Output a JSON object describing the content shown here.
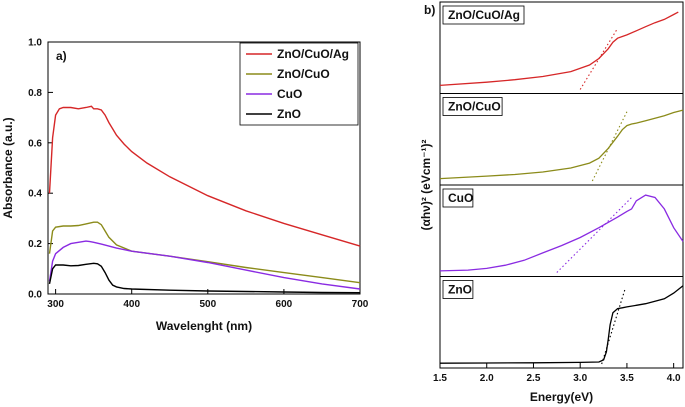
{
  "chart_data": [
    {
      "type": "line",
      "panel_label": "a)",
      "xlabel": "Wavelenght (nm)",
      "ylabel": "Absorbance (a.u.)",
      "xlim": [
        290,
        700
      ],
      "ylim": [
        0,
        1.0
      ],
      "xticks": [
        300,
        400,
        500,
        600,
        700
      ],
      "yticks": [
        0.0,
        0.2,
        0.4,
        0.6,
        0.8,
        1.0
      ],
      "ytick_labels": [
        "0.0",
        "0.2",
        "0.4",
        "0.6",
        "0.8",
        "1.0"
      ],
      "legend_position": "top-right",
      "series": [
        {
          "name": "ZnO/CuO/Ag",
          "color": "#d62728",
          "x": [
            292,
            296,
            300,
            305,
            310,
            320,
            330,
            340,
            347,
            350,
            355,
            360,
            365,
            370,
            375,
            380,
            390,
            400,
            420,
            450,
            500,
            550,
            600,
            650,
            700
          ],
          "y": [
            0.4,
            0.62,
            0.71,
            0.735,
            0.74,
            0.74,
            0.735,
            0.74,
            0.745,
            0.735,
            0.735,
            0.73,
            0.71,
            0.68,
            0.655,
            0.63,
            0.595,
            0.565,
            0.52,
            0.465,
            0.39,
            0.33,
            0.28,
            0.235,
            0.19
          ]
        },
        {
          "name": "ZnO/CuO",
          "color": "#8b8b1a",
          "x": [
            292,
            296,
            300,
            310,
            320,
            330,
            340,
            350,
            355,
            360,
            365,
            370,
            380,
            400,
            450,
            500,
            550,
            600,
            650,
            700
          ],
          "y": [
            0.16,
            0.25,
            0.265,
            0.27,
            0.27,
            0.272,
            0.278,
            0.285,
            0.285,
            0.275,
            0.25,
            0.225,
            0.195,
            0.17,
            0.15,
            0.128,
            0.105,
            0.085,
            0.065,
            0.045
          ]
        },
        {
          "name": "CuO",
          "color": "#8a2be2",
          "x": [
            292,
            296,
            300,
            310,
            320,
            330,
            340,
            345,
            350,
            360,
            370,
            380,
            400,
            450,
            500,
            550,
            600,
            650,
            700
          ],
          "y": [
            0.05,
            0.13,
            0.16,
            0.185,
            0.2,
            0.205,
            0.21,
            0.208,
            0.205,
            0.198,
            0.19,
            0.182,
            0.17,
            0.15,
            0.125,
            0.095,
            0.065,
            0.04,
            0.02
          ]
        },
        {
          "name": "ZnO",
          "color": "#000000",
          "x": [
            292,
            296,
            300,
            310,
            320,
            330,
            340,
            350,
            355,
            360,
            365,
            370,
            375,
            380,
            390,
            400,
            450,
            500,
            550,
            600,
            650,
            700
          ],
          "y": [
            0.04,
            0.1,
            0.115,
            0.115,
            0.112,
            0.113,
            0.118,
            0.122,
            0.12,
            0.11,
            0.085,
            0.055,
            0.035,
            0.028,
            0.022,
            0.02,
            0.015,
            0.012,
            0.01,
            0.008,
            0.006,
            0.005
          ]
        }
      ]
    },
    {
      "type": "line",
      "panel_label": "b)",
      "xlabel": "Energy(eV)",
      "ylabel": "(αhν)² (eVcm⁻¹)²",
      "xlim": [
        1.5,
        4.1
      ],
      "xticks": [
        1.5,
        2.0,
        2.5,
        3.0,
        3.5,
        4.0
      ],
      "xtick_labels": [
        "1.5",
        "2.0",
        "2.5",
        "3.0",
        "3.5",
        "4.0"
      ],
      "panels": [
        {
          "name": "ZnO/CuO/Ag",
          "color": "#d62728",
          "x": [
            1.5,
            2.0,
            2.3,
            2.6,
            2.9,
            3.1,
            3.2,
            3.3,
            3.35,
            3.4,
            3.45,
            3.5,
            3.6,
            3.7,
            3.8,
            3.9,
            4.0,
            4.05
          ],
          "y": [
            0.05,
            0.09,
            0.12,
            0.16,
            0.22,
            0.3,
            0.38,
            0.5,
            0.58,
            0.63,
            0.65,
            0.67,
            0.72,
            0.77,
            0.82,
            0.86,
            0.92,
            0.95
          ],
          "tangent": {
            "x": [
              3.0,
              3.4
            ],
            "y": [
              0.0,
              0.75
            ]
          }
        },
        {
          "name": "ZnO/CuO",
          "color": "#8b8b1a",
          "x": [
            1.5,
            2.0,
            2.3,
            2.6,
            2.9,
            3.1,
            3.2,
            3.3,
            3.4,
            3.45,
            3.5,
            3.55,
            3.6,
            3.7,
            3.8,
            3.9,
            4.0,
            4.1
          ],
          "y": [
            0.03,
            0.06,
            0.08,
            0.11,
            0.16,
            0.22,
            0.28,
            0.4,
            0.55,
            0.63,
            0.68,
            0.7,
            0.71,
            0.74,
            0.77,
            0.8,
            0.84,
            0.87
          ],
          "tangent": {
            "x": [
              3.13,
              3.5
            ],
            "y": [
              0.0,
              0.85
            ]
          }
        },
        {
          "name": "CuO",
          "color": "#8a2be2",
          "x": [
            1.5,
            1.8,
            2.0,
            2.2,
            2.4,
            2.6,
            2.8,
            3.0,
            3.2,
            3.4,
            3.5,
            3.55,
            3.6,
            3.7,
            3.8,
            3.9,
            4.0,
            4.1
          ],
          "y": [
            0.02,
            0.03,
            0.05,
            0.09,
            0.15,
            0.24,
            0.33,
            0.43,
            0.55,
            0.68,
            0.75,
            0.78,
            0.88,
            0.95,
            0.92,
            0.78,
            0.55,
            0.38
          ],
          "tangent": {
            "x": [
              2.75,
              3.55
            ],
            "y": [
              0.0,
              0.92
            ]
          }
        },
        {
          "name": "ZnO",
          "color": "#000000",
          "x": [
            1.5,
            2.0,
            2.5,
            3.0,
            3.2,
            3.25,
            3.28,
            3.3,
            3.32,
            3.35,
            3.4,
            3.45,
            3.5,
            3.6,
            3.7,
            3.8,
            3.9,
            4.0,
            4.1
          ],
          "y": [
            0.01,
            0.012,
            0.015,
            0.02,
            0.025,
            0.05,
            0.15,
            0.3,
            0.48,
            0.63,
            0.68,
            0.69,
            0.7,
            0.72,
            0.74,
            0.77,
            0.8,
            0.87,
            0.96
          ],
          "tangent": {
            "x": [
              3.23,
              3.48
            ],
            "y": [
              0.0,
              0.92
            ]
          }
        }
      ]
    }
  ]
}
